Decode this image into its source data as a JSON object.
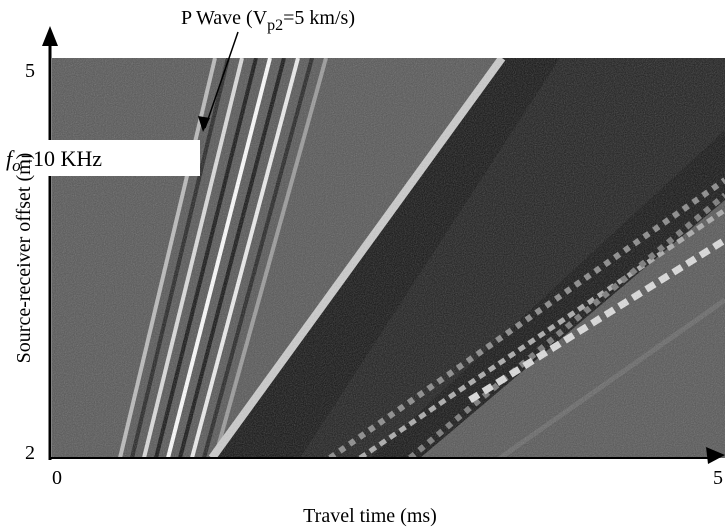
{
  "chart_data": {
    "type": "image",
    "title": {
      "prefix": "P Wave (V",
      "sub": "p2",
      "suffix": "=5 km/s)"
    },
    "annotation": {
      "symbol": "f",
      "sub": "o",
      "suffix": "=10 KHz"
    },
    "x_label": "Travel time (ms)",
    "y_label": "Source-receiver offset (m)",
    "xlim": [
      0,
      5
    ],
    "xticks": [
      0,
      5
    ],
    "ylim": [
      2,
      5
    ],
    "yticks": [
      2,
      5
    ]
  }
}
